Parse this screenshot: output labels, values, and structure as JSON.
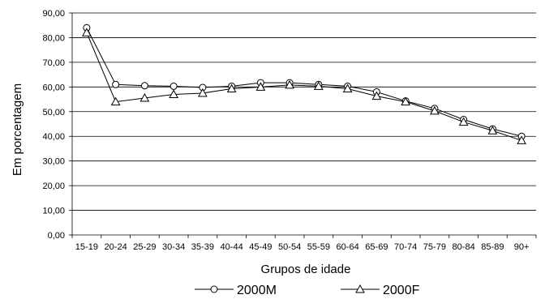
{
  "chart_data": {
    "type": "line",
    "xlabel": "Grupos de idade",
    "ylabel": "Em porcentagem",
    "ylim": [
      0,
      90
    ],
    "yticks": [
      "0,00",
      "10,00",
      "20,00",
      "30,00",
      "40,00",
      "50,00",
      "60,00",
      "70,00",
      "80,00",
      "90,00"
    ],
    "grid": "horizontal",
    "legend_position": "bottom",
    "categories": [
      "15-19",
      "20-24",
      "25-29",
      "30-34",
      "35-39",
      "40-44",
      "45-49",
      "50-54",
      "55-59",
      "60-64",
      "65-69",
      "70-74",
      "75-79",
      "80-84",
      "85-89",
      "90+"
    ],
    "series": [
      {
        "name": "2000M",
        "marker": "circle",
        "values": [
          84.0,
          61.0,
          60.5,
          60.3,
          59.8,
          60.3,
          61.7,
          61.7,
          61.0,
          60.3,
          58.0,
          54.3,
          51.3,
          46.8,
          43.0,
          40.0
        ]
      },
      {
        "name": "2000F",
        "marker": "triangle",
        "values": [
          82.0,
          54.0,
          55.5,
          57.0,
          57.5,
          59.3,
          60.0,
          60.8,
          60.3,
          59.3,
          56.3,
          54.0,
          50.3,
          45.8,
          42.3,
          38.3
        ]
      }
    ]
  }
}
